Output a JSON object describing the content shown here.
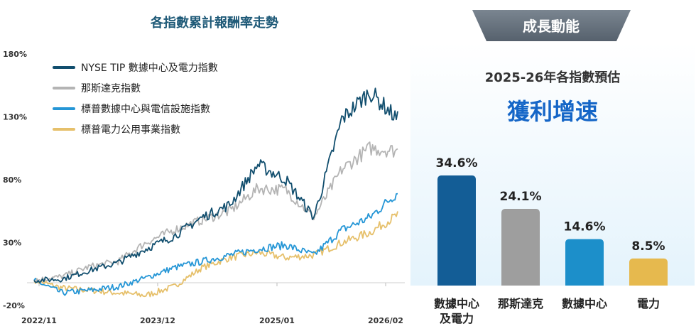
{
  "chart_data": [
    {
      "type": "line",
      "title": "各指數累計報酬率走勢",
      "xlabel": "",
      "ylabel": "",
      "y_tick_labels": [
        "180%",
        "130%",
        "80%",
        "30%",
        "-20%"
      ],
      "y_ticks": [
        180,
        130,
        80,
        30,
        -20
      ],
      "ylim": [
        -20,
        180
      ],
      "x_tick_labels": [
        "2022/11",
        "2023/12",
        "2025/01",
        "2026/02"
      ],
      "x": [
        "2022/11",
        "2023/02",
        "2023/05",
        "2023/08",
        "2023/11",
        "2024/02",
        "2024/05",
        "2024/08",
        "2024/11",
        "2025/02",
        "2025/05",
        "2025/08",
        "2025/11",
        "2026/02"
      ],
      "legend_position": "top-left",
      "grid": false,
      "series": [
        {
          "name": "NYSE TIP 數據中心及電力指數",
          "color": "#114e6e",
          "values": [
            0,
            1,
            8,
            14,
            25,
            35,
            50,
            60,
            92,
            80,
            50,
            128,
            150,
            128
          ]
        },
        {
          "name": "那斯達克指數",
          "color": "#b4b4b4",
          "values": [
            0,
            3,
            11,
            15,
            30,
            40,
            48,
            55,
            73,
            72,
            50,
            88,
            105,
            103
          ]
        },
        {
          "name": "標普數據中心與電信設施指數",
          "color": "#2596d6",
          "values": [
            0,
            -10,
            -8,
            -5,
            2,
            10,
            15,
            20,
            25,
            28,
            20,
            40,
            50,
            70
          ]
        },
        {
          "name": "標普電力公用事業指數",
          "color": "#e6c06b",
          "values": [
            0,
            -6,
            -8,
            -10,
            -12,
            -5,
            10,
            18,
            22,
            18,
            20,
            30,
            38,
            52
          ]
        }
      ]
    },
    {
      "type": "bar",
      "badge": "成長動能",
      "title": "2025-26年各指數預估",
      "subtitle": "獲利增速",
      "categories": [
        "數據中心\n及電力",
        "那斯達克",
        "數據中心",
        "電力"
      ],
      "values": [
        34.6,
        24.1,
        14.6,
        8.5
      ],
      "value_labels": [
        "34.6%",
        "24.1%",
        "14.6%",
        "8.5%"
      ],
      "colors": [
        "#135d96",
        "#9e9e9e",
        "#1c8fca",
        "#e6b94e"
      ]
    }
  ],
  "theme": {
    "title_color": "#1f5a78",
    "accent_blue": "#1566c7",
    "panel_bg": "#eef7fd",
    "badge_color": "#5f6b77"
  }
}
